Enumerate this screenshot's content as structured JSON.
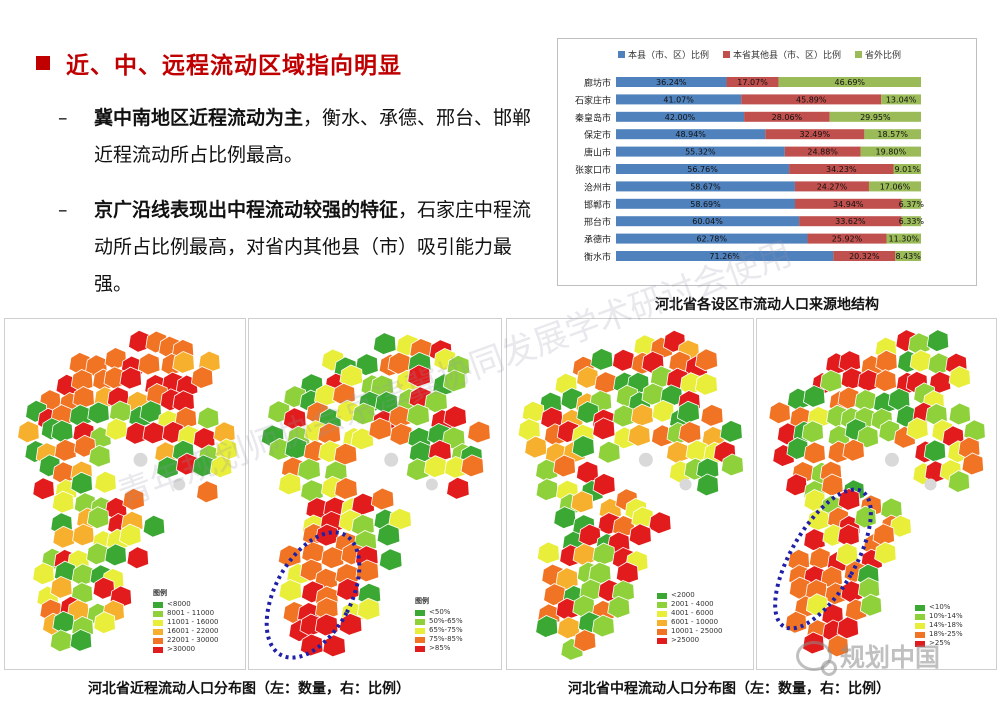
{
  "heading": "近、中、远程流动区域指向明显",
  "bullets": [
    {
      "dash": "–",
      "bold": "冀中南地区近程流动为主",
      "rest": "，衡水、承德、邢台、邯郸近程流动所占比例最高。"
    },
    {
      "dash": "–",
      "bold": "京广沿线表现出中程流动较强的特征",
      "rest": "，石家庄中程流动所占比例最高，对省内其他县（市）吸引能力最强。"
    }
  ],
  "chart_caption": "河北省各设区市流动人口来源地结构",
  "chart_data": {
    "type": "bar",
    "orientation": "horizontal",
    "stacked": "percent",
    "categories": [
      "廊坊市",
      "石家庄市",
      "秦皇岛市",
      "保定市",
      "唐山市",
      "张家口市",
      "沧州市",
      "邯郸市",
      "邢台市",
      "承德市",
      "衡水市"
    ],
    "series": [
      {
        "name": "本县（市、区）比例",
        "color": "#4f81bd",
        "values": [
          36.24,
          41.07,
          42.0,
          48.94,
          55.32,
          56.76,
          58.67,
          58.69,
          60.04,
          62.78,
          71.26
        ]
      },
      {
        "name": "本省其他县（市、区）比例",
        "color": "#c0504d",
        "values": [
          17.07,
          45.89,
          28.06,
          32.49,
          24.88,
          34.23,
          24.27,
          34.94,
          33.62,
          25.92,
          20.32
        ]
      },
      {
        "name": "省外比例",
        "color": "#9bbb59",
        "values": [
          46.69,
          13.04,
          29.95,
          18.57,
          19.8,
          9.01,
          17.06,
          6.37,
          6.33,
          11.3,
          8.43
        ]
      }
    ],
    "legend_position": "top",
    "grid": false
  },
  "maps": [
    {
      "legend_title": "图例",
      "items": [
        {
          "label": "<8000",
          "color": "#3aa832"
        },
        {
          "label": "8001 - 11000",
          "color": "#8fd13b"
        },
        {
          "label": "11001 - 16000",
          "color": "#e8ee3a"
        },
        {
          "label": "16001 - 22000",
          "color": "#f7b02e"
        },
        {
          "label": "22001 - 30000",
          "color": "#f07423"
        },
        {
          "label": ">30000",
          "color": "#e21c1c"
        }
      ]
    },
    {
      "legend_title": "图例",
      "items": [
        {
          "label": "<50%",
          "color": "#3aa832"
        },
        {
          "label": "50%-65%",
          "color": "#8fd13b"
        },
        {
          "label": "65%-75%",
          "color": "#e8ee3a"
        },
        {
          "label": "75%-85%",
          "color": "#f07423"
        },
        {
          "label": ">85%",
          "color": "#e21c1c"
        }
      ]
    },
    {
      "legend_title": "",
      "items": [
        {
          "label": "<2000",
          "color": "#3aa832"
        },
        {
          "label": "2001 - 4000",
          "color": "#8fd13b"
        },
        {
          "label": "4001 - 6000",
          "color": "#e8ee3a"
        },
        {
          "label": "6001 - 10000",
          "color": "#f7b02e"
        },
        {
          "label": "10001 - 25000",
          "color": "#f07423"
        },
        {
          "label": ">25000",
          "color": "#e21c1c"
        }
      ]
    },
    {
      "legend_title": "",
      "items": [
        {
          "label": "<10%",
          "color": "#3aa832"
        },
        {
          "label": "10%-14%",
          "color": "#8fd13b"
        },
        {
          "label": "14%-18%",
          "color": "#e8ee3a"
        },
        {
          "label": "18%-25%",
          "color": "#f07423"
        },
        {
          "label": ">25%",
          "color": "#e21c1c"
        }
      ]
    }
  ],
  "map_captions": [
    "河北省近程流动人口分布图（左：数量，右：比例）",
    "河北省中程流动人口分布图（左：数量，右：比例）"
  ],
  "watermarks": {
    "diagonal": "青年规划师协会京津冀协同发展学术研讨会使用",
    "logo": "规划中国"
  }
}
